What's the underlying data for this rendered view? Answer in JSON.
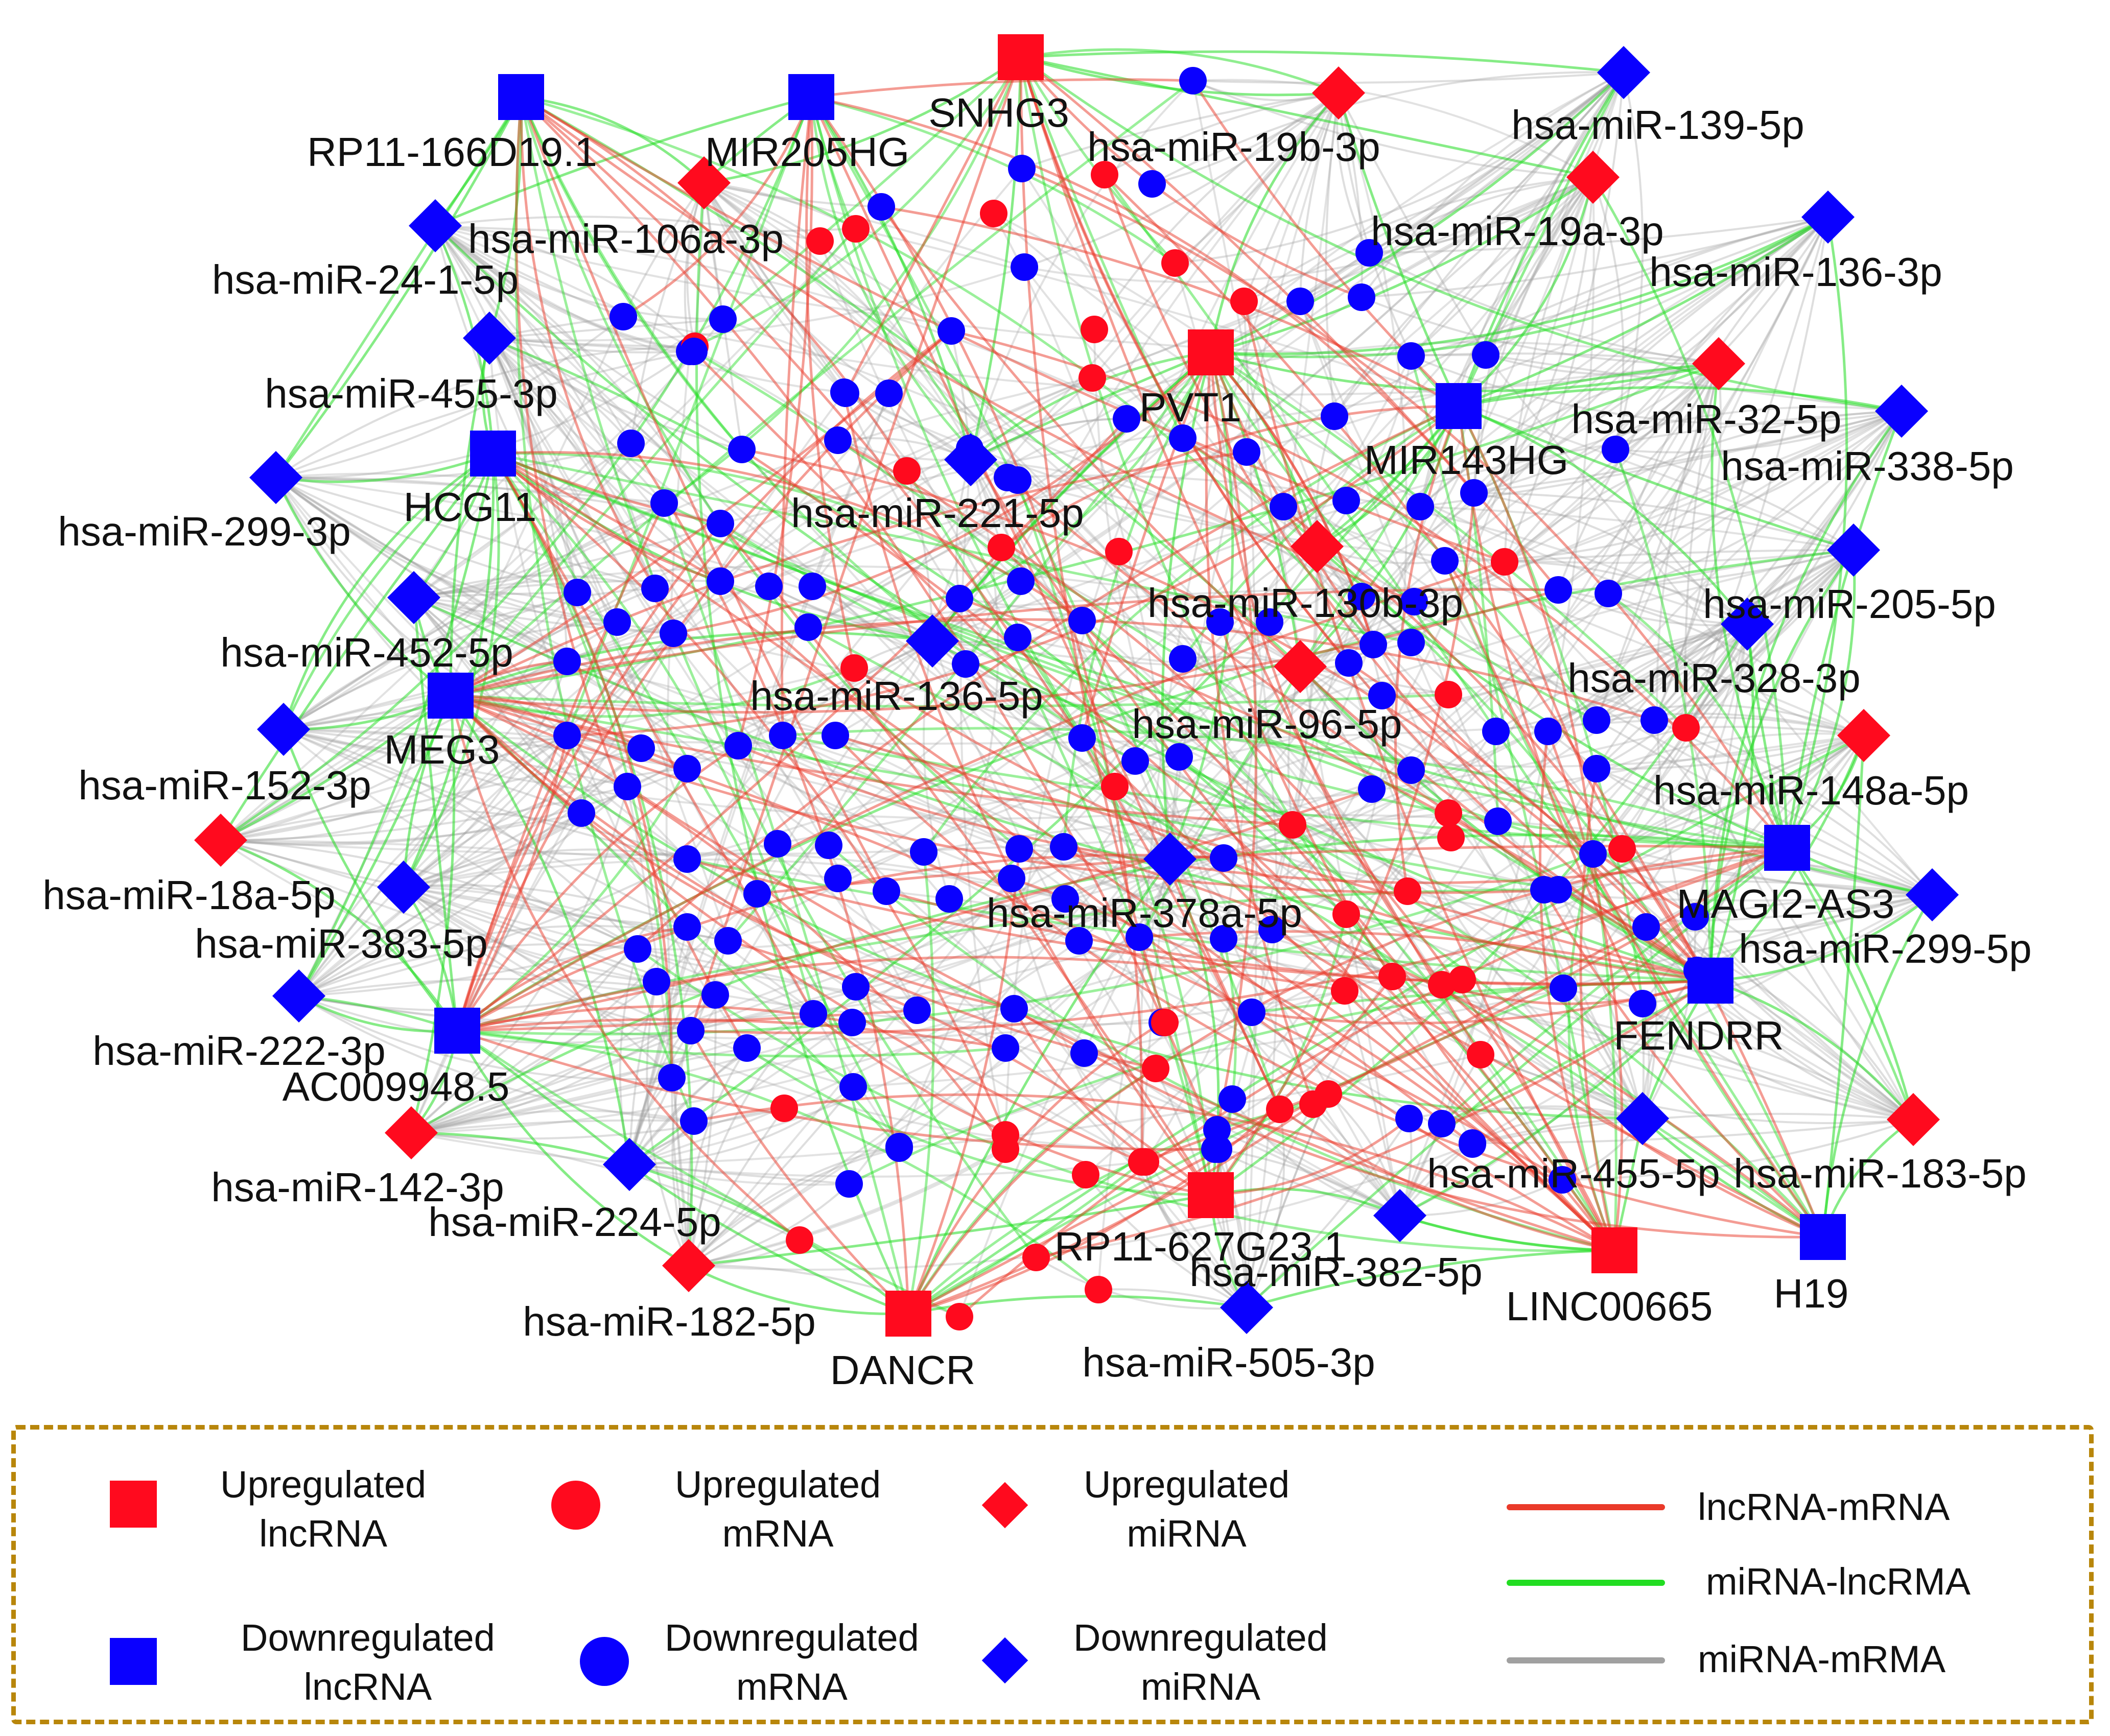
{
  "colors": {
    "up": "#ff0a1e",
    "down": "#0a00ff",
    "edge_lnc_mrna": "#ea3a2a",
    "edge_mirna_lnc": "#22dd22",
    "edge_mirna_mrna": "#a0a0a0",
    "legend_border": "#b8860b"
  },
  "network": {
    "lncrnas": [
      {
        "label": "SNHG3",
        "regulation": "up"
      },
      {
        "label": "RP11-166D19.1",
        "regulation": "down"
      },
      {
        "label": "MIR205HG",
        "regulation": "down"
      },
      {
        "label": "PVT1",
        "regulation": "up"
      },
      {
        "label": "MIR143HG",
        "regulation": "down"
      },
      {
        "label": "HCG11",
        "regulation": "down"
      },
      {
        "label": "MEG3",
        "regulation": "down"
      },
      {
        "label": "MAGI2-AS3",
        "regulation": "down"
      },
      {
        "label": "FENDRR",
        "regulation": "down"
      },
      {
        "label": "AC009948.5",
        "regulation": "down"
      },
      {
        "label": "RP11-627G23.1",
        "regulation": "up"
      },
      {
        "label": "LINC00665",
        "regulation": "up"
      },
      {
        "label": "H19",
        "regulation": "down"
      },
      {
        "label": "DANCR",
        "regulation": "up"
      }
    ],
    "mirnas": [
      {
        "label": "hsa-miR-19b-3p",
        "regulation": "up"
      },
      {
        "label": "hsa-miR-139-5p",
        "regulation": "down"
      },
      {
        "label": "hsa-miR-106a-3p",
        "regulation": "up"
      },
      {
        "label": "hsa-miR-19a-3p",
        "regulation": "up"
      },
      {
        "label": "hsa-miR-24-1-5p",
        "regulation": "down"
      },
      {
        "label": "hsa-miR-136-3p",
        "regulation": "down"
      },
      {
        "label": "hsa-miR-455-3p",
        "regulation": "down"
      },
      {
        "label": "hsa-miR-32-5p",
        "regulation": "up"
      },
      {
        "label": "hsa-miR-338-5p",
        "regulation": "down"
      },
      {
        "label": "hsa-miR-299-3p",
        "regulation": "down"
      },
      {
        "label": "hsa-miR-221-5p",
        "regulation": "down"
      },
      {
        "label": "hsa-miR-205-5p",
        "regulation": "down"
      },
      {
        "label": "hsa-miR-130b-3p",
        "regulation": "up"
      },
      {
        "label": "hsa-miR-452-5p",
        "regulation": "down"
      },
      {
        "label": "hsa-miR-328-3p",
        "regulation": "down"
      },
      {
        "label": "hsa-miR-136-5p",
        "regulation": "down"
      },
      {
        "label": "hsa-miR-96-5p",
        "regulation": "up"
      },
      {
        "label": "hsa-miR-152-3p",
        "regulation": "down"
      },
      {
        "label": "hsa-miR-148a-5p",
        "regulation": "up"
      },
      {
        "label": "hsa-miR-18a-5p",
        "regulation": "up"
      },
      {
        "label": "hsa-miR-378a-5p",
        "regulation": "down"
      },
      {
        "label": "hsa-miR-383-5p",
        "regulation": "down"
      },
      {
        "label": "hsa-miR-299-5p",
        "regulation": "down"
      },
      {
        "label": "hsa-miR-222-3p",
        "regulation": "down"
      },
      {
        "label": "hsa-miR-142-3p",
        "regulation": "up"
      },
      {
        "label": "hsa-miR-455-5p",
        "regulation": "down"
      },
      {
        "label": "hsa-miR-183-5p",
        "regulation": "up"
      },
      {
        "label": "hsa-miR-224-5p",
        "regulation": "down"
      },
      {
        "label": "hsa-miR-382-5p",
        "regulation": "down"
      },
      {
        "label": "hsa-miR-182-5p",
        "regulation": "up"
      },
      {
        "label": "hsa-miR-505-3p",
        "regulation": "down"
      }
    ]
  },
  "legend": {
    "up_lncrna": "Upregulated\nlncRNA",
    "up_mrna": "Upregulated\nmRNA",
    "up_mirna": "Upregulated\nmiRNA",
    "down_lncrna": "Downregulated\nlncRNA",
    "down_mrna": "Downregulated\nmRNA",
    "down_mirna": "Downregulated\nmiRNA",
    "edge_lnc_mrna": "lncRNA-mRNA",
    "edge_mirna_lnc": "miRNA-lncRMA",
    "edge_mirna_mrna": "miRNA-mRMA"
  }
}
